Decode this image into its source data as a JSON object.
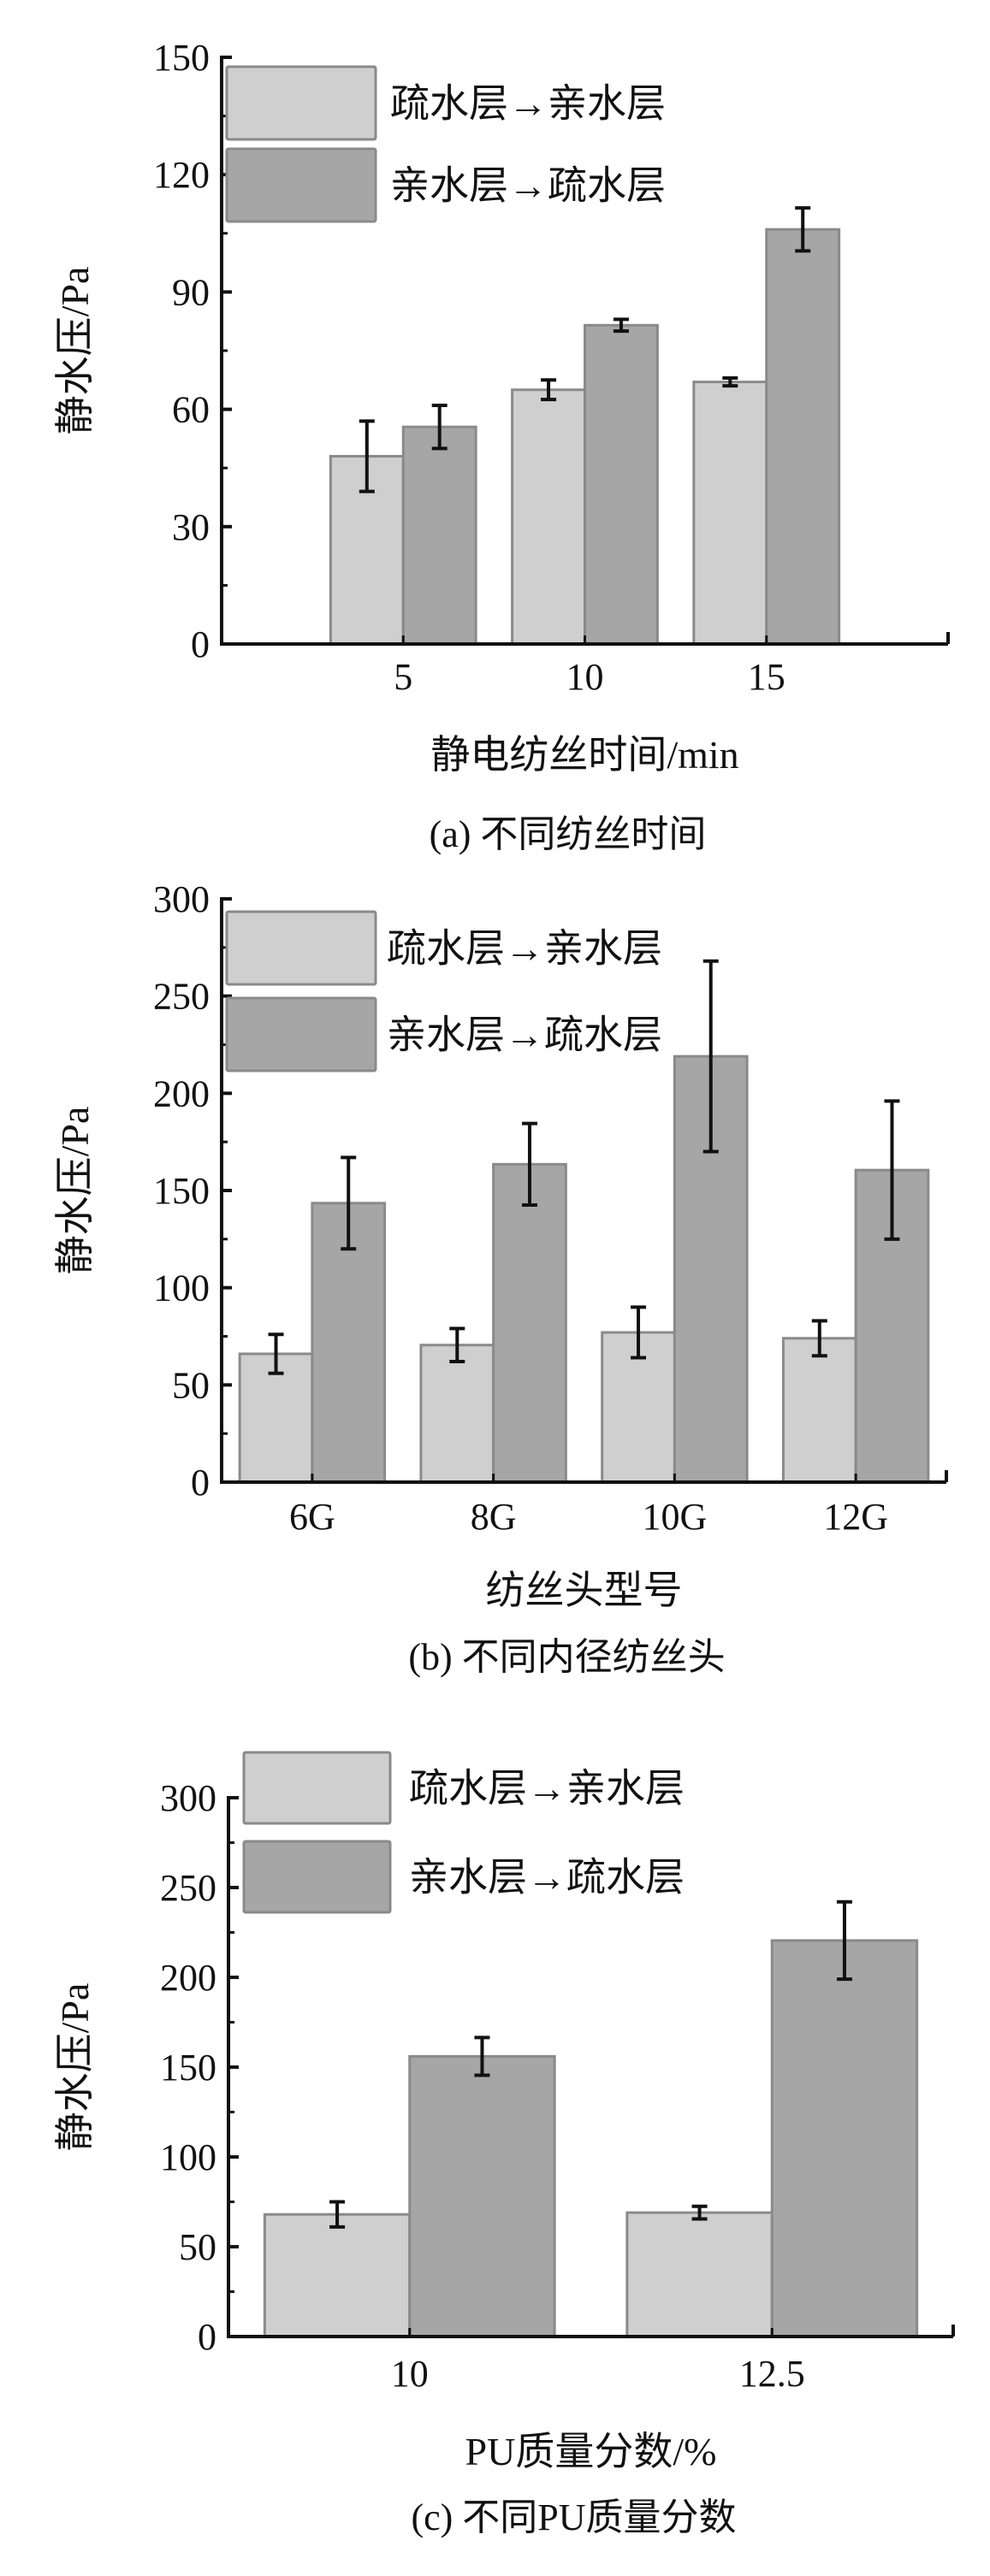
{
  "colors": {
    "light": "#cfcfcf",
    "dark": "#a6a6a6",
    "bar_edge": "#8a8a8a",
    "axis": "#111111",
    "error": "#111111"
  },
  "chart_data": [
    {
      "type": "bar",
      "caption": "(a) 不同纺丝时间",
      "xlabel": "静电纺丝时间/min",
      "ylabel": "静水压/Pa",
      "ylim": [
        0,
        150
      ],
      "yticks": [
        "0",
        "30",
        "60",
        "90",
        "120",
        "150"
      ],
      "categories": [
        "5",
        "10",
        "15"
      ],
      "legend_position": "top-left",
      "series": [
        {
          "name": "疏水层→亲水层",
          "values": [
            48,
            65,
            67
          ],
          "errors": [
            9,
            2.5,
            1
          ]
        },
        {
          "name": "亲水层→疏水层",
          "values": [
            55.5,
            81.5,
            106
          ],
          "errors": [
            5.5,
            1.5,
            5.5
          ]
        }
      ]
    },
    {
      "type": "bar",
      "caption": "(b) 不同内径纺丝头",
      "xlabel": "纺丝头型号",
      "ylabel": "静水压/Pa",
      "ylim": [
        0,
        300
      ],
      "yticks": [
        "0",
        "50",
        "100",
        "150",
        "200",
        "250",
        "300"
      ],
      "categories": [
        "6G",
        "8G",
        "10G",
        "12G"
      ],
      "legend_position": "top-left",
      "series": [
        {
          "name": "疏水层→亲水层",
          "values": [
            66,
            70.5,
            77,
            74
          ],
          "errors": [
            10,
            8.5,
            13,
            9
          ]
        },
        {
          "name": "亲水层→疏水层",
          "values": [
            143.5,
            163.5,
            219,
            160.5
          ],
          "errors": [
            23.5,
            21,
            49,
            35.5
          ]
        }
      ]
    },
    {
      "type": "bar",
      "caption": "(c) 不同PU质量分数",
      "xlabel": "PU质量分数/%",
      "ylabel": "静水压/Pa",
      "ylim": [
        0,
        300
      ],
      "yticks": [
        "0",
        "50",
        "100",
        "150",
        "200",
        "250",
        "300"
      ],
      "categories": [
        "10",
        "12.5"
      ],
      "legend_position": "top-left",
      "series": [
        {
          "name": "疏水层→亲水层",
          "values": [
            68,
            69
          ],
          "errors": [
            7,
            3.5
          ]
        },
        {
          "name": "亲水层→疏水层",
          "values": [
            156,
            220.5
          ],
          "errors": [
            10.5,
            21.5
          ]
        }
      ]
    }
  ]
}
